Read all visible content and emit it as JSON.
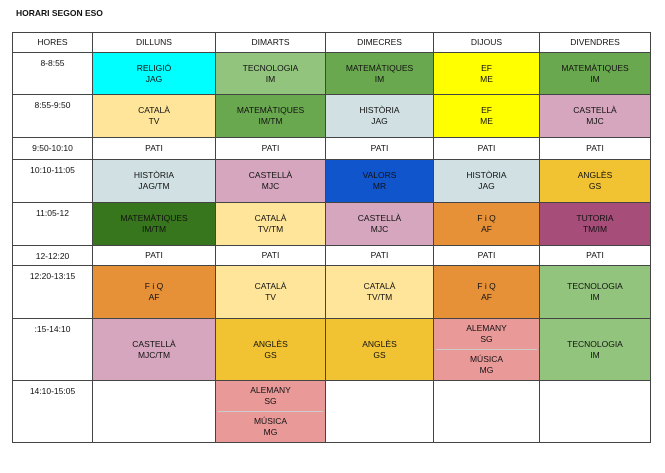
{
  "title": "HORARI SEGON ESO",
  "headers": [
    "HORES",
    "DILLUNS",
    "DIMARTS",
    "DIMECRES",
    "DIJOUS",
    "DIVENDRES"
  ],
  "rows": [
    {
      "time": "8-8:55",
      "cells": [
        {
          "l1": "RELIGIÓ",
          "l2": "JAG",
          "color": "#00ffff"
        },
        {
          "l1": "TECNOLOGIA",
          "l2": "IM",
          "color": "#93c47d"
        },
        {
          "l1": "MATEMÀTIQUES",
          "l2": "IM",
          "color": "#6aa84f"
        },
        {
          "l1": "EF",
          "l2": "ME",
          "color": "#ffff00"
        },
        {
          "l1": "MATEMÀTIQUES",
          "l2": "IM",
          "color": "#6aa84f"
        }
      ]
    },
    {
      "time": "8:55-9:50",
      "cells": [
        {
          "l1": "CATALÀ",
          "l2": "TV",
          "color": "#ffe599"
        },
        {
          "l1": "MATEMÀTIQUES",
          "l2": "IM/TM",
          "color": "#6aa84f"
        },
        {
          "l1": "HISTÒRIA",
          "l2": "JAG",
          "color": "#d0e0e3"
        },
        {
          "l1": "EF",
          "l2": "ME",
          "color": "#ffff00"
        },
        {
          "l1": "CASTELLÀ",
          "l2": "MJC",
          "color": "#d5a6bd"
        }
      ]
    },
    {
      "time": "9:50-10:10",
      "cells": [
        {
          "l1": "PATI",
          "l2": ""
        },
        {
          "l1": "PATI",
          "l2": ""
        },
        {
          "l1": "PATI",
          "l2": ""
        },
        {
          "l1": "PATI",
          "l2": ""
        },
        {
          "l1": "PATI",
          "l2": ""
        }
      ]
    },
    {
      "time": "10:10-11:05",
      "cells": [
        {
          "l1": "HISTÒRIA",
          "l2": "JAG/TM",
          "color": "#d0e0e3"
        },
        {
          "l1": "CASTELLÀ",
          "l2": "MJC",
          "color": "#d5a6bd"
        },
        {
          "l1": "VALORS",
          "l2": "MR",
          "color": "#1155cc"
        },
        {
          "l1": "HISTÒRIA",
          "l2": "JAG",
          "color": "#d0e0e3"
        },
        {
          "l1": "ANGLÈS",
          "l2": "GS",
          "color": "#f1c232"
        }
      ]
    },
    {
      "time": "11:05-12",
      "cells": [
        {
          "l1": "MATEMÀTIQUES",
          "l2": "IM/TM",
          "color": "#38761d"
        },
        {
          "l1": "CATALÀ",
          "l2": "TV/TM",
          "color": "#ffe599"
        },
        {
          "l1": "CASTELLÀ",
          "l2": "MJC",
          "color": "#d5a6bd"
        },
        {
          "l1": "F i Q",
          "l2": "AF",
          "color": "#e69138"
        },
        {
          "l1": "TUTORIA",
          "l2": "TM/IM",
          "color": "#a64d79"
        }
      ]
    },
    {
      "time": "12-12:20",
      "cells": [
        {
          "l1": "PATI",
          "l2": ""
        },
        {
          "l1": "PATI",
          "l2": ""
        },
        {
          "l1": "PATI",
          "l2": ""
        },
        {
          "l1": "PATI",
          "l2": ""
        },
        {
          "l1": "PATI",
          "l2": ""
        }
      ]
    },
    {
      "time": "12:20-13:15",
      "cells": [
        {
          "l1": "F i Q",
          "l2": "AF",
          "color": "#e69138"
        },
        {
          "l1": "CATALÀ",
          "l2": "TV",
          "color": "#ffe599"
        },
        {
          "l1": "CATALÀ",
          "l2": "TV/TM",
          "color": "#ffe599"
        },
        {
          "l1": "F i Q",
          "l2": "AF",
          "color": "#e69138"
        },
        {
          "l1": "TECNOLOGIA",
          "l2": "IM",
          "color": "#93c47d"
        }
      ]
    },
    {
      "time": ":15-14:10",
      "cells": [
        {
          "l1": "CASTELLÀ",
          "l2": "MJC/TM",
          "color": "#d5a6bd"
        },
        {
          "l1": "ANGLÈS",
          "l2": "GS",
          "color": "#f1c232"
        },
        {
          "l1": "ANGLÈS",
          "l2": "GS",
          "color": "#f1c232"
        },
        {
          "l1": "ALEMANY",
          "l2": "SG",
          "l3": "MÚSICA",
          "l4": "MG",
          "color": "#ea9999"
        },
        {
          "l1": "TECNOLOGIA",
          "l2": "IM",
          "color": "#93c47d"
        }
      ]
    },
    {
      "time": "14:10-15:05",
      "cells": [
        {
          "l1": "",
          "l2": ""
        },
        {
          "l1": "ALEMANY",
          "l2": "SG",
          "l3": "MÚSICA",
          "l4": "MG",
          "color": "#ea9999"
        },
        {
          "l1": "",
          "l2": ""
        },
        {
          "l1": "",
          "l2": ""
        },
        {
          "l1": "",
          "l2": ""
        }
      ]
    }
  ]
}
